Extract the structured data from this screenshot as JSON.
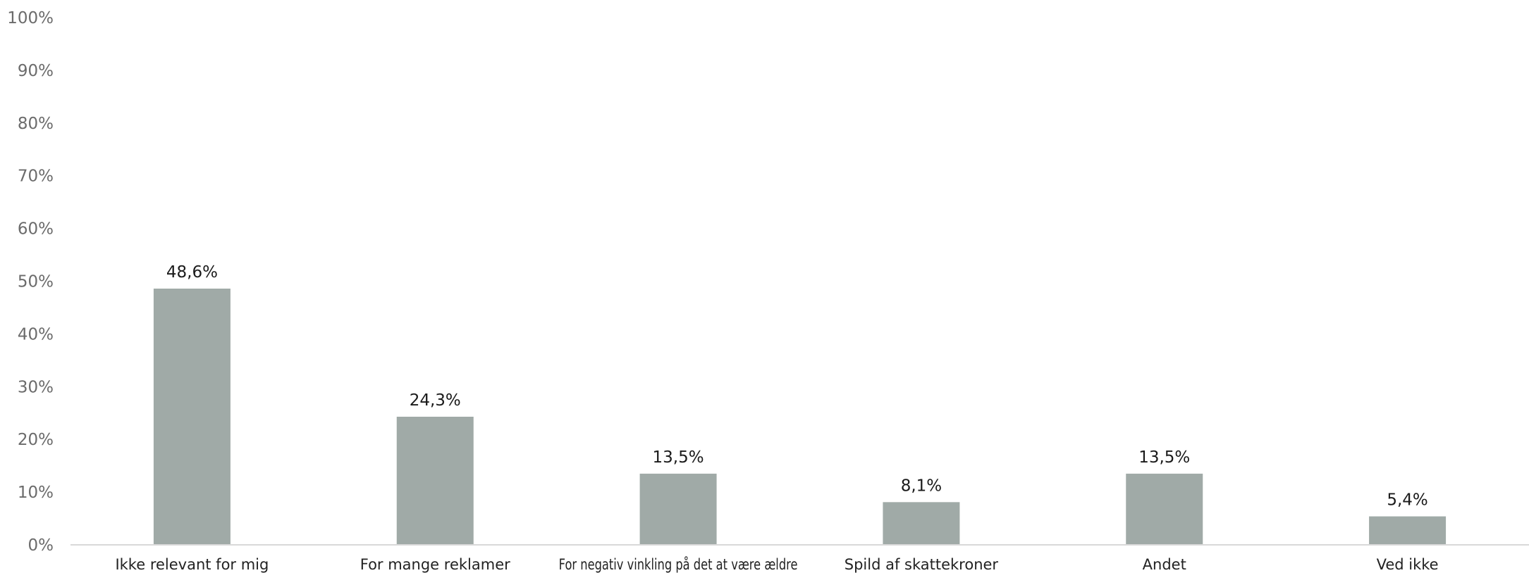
{
  "chart_data": {
    "type": "bar",
    "title": "",
    "xlabel": "",
    "ylabel": "",
    "categories": [
      "Ikke relevant for mig",
      "For mange reklamer",
      "For negativ vinkling på det at være ældre",
      "Spild af skattekroner",
      "Andet",
      "Ved ikke"
    ],
    "values": [
      48.6,
      24.3,
      13.5,
      8.1,
      13.5,
      5.4
    ],
    "data_labels": [
      "48,6%",
      "24,3%",
      "13,5%",
      "8,1%",
      "13,5%",
      "5,4%"
    ],
    "ylim": [
      0,
      100
    ],
    "yticks": [
      0,
      10,
      20,
      30,
      40,
      50,
      60,
      70,
      80,
      90,
      100
    ],
    "ytick_labels": [
      "0%",
      "10%",
      "20%",
      "30%",
      "40%",
      "50%",
      "60%",
      "70%",
      "80%",
      "90%",
      "100%"
    ],
    "grid": false,
    "legend": "none",
    "bar_color": "#a0aaa7",
    "axis_color": "#d9d9d9"
  }
}
